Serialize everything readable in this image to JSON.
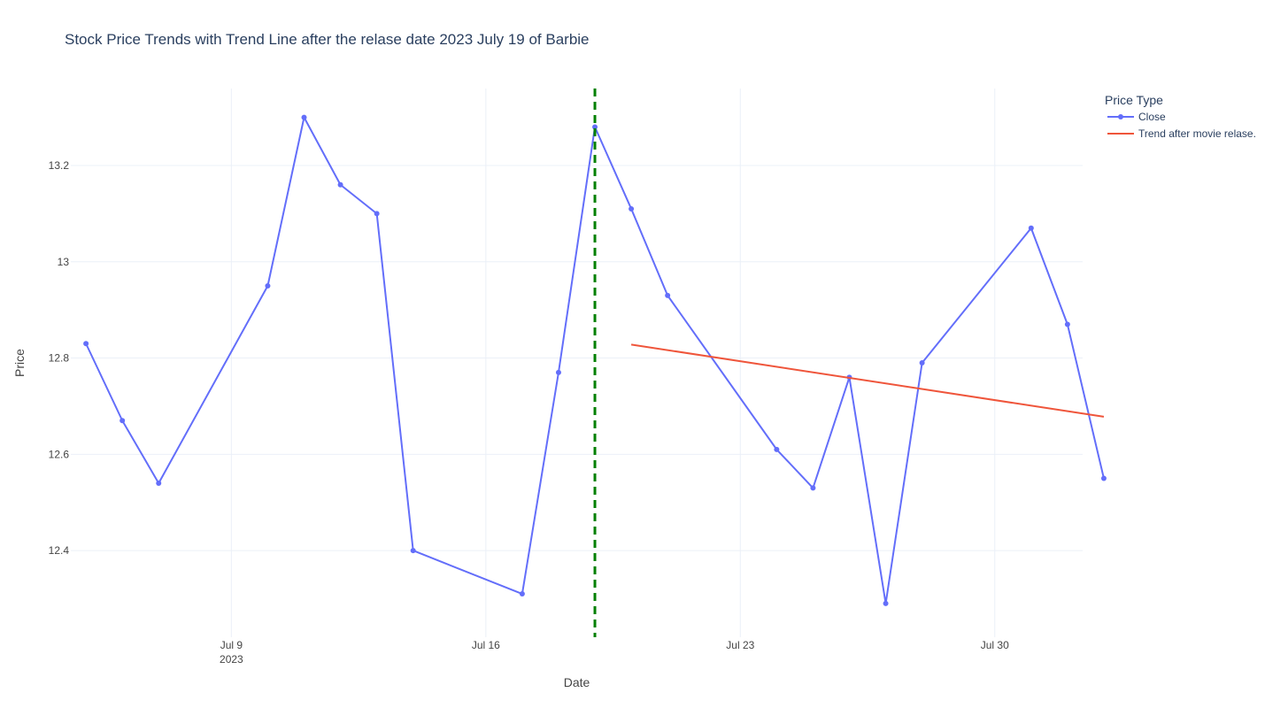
{
  "chart_data": {
    "type": "line",
    "title": "Stock Price Trends with Trend Line after the relase date 2023 July 19 of Barbie",
    "xlabel": "Date",
    "ylabel": "Price",
    "legend": {
      "title": "Price Type",
      "placement": "top-right-outside",
      "entries": [
        "Close",
        "Trend after movie relase."
      ]
    },
    "x_range": [
      "2023-07-04T14:00",
      "2023-08-01T10:00"
    ],
    "ylim": [
      12.22,
      13.36
    ],
    "grid": true,
    "x_ticks": [
      {
        "date": "2023-07-09",
        "label": "Jul 9",
        "sublabel": "2023"
      },
      {
        "date": "2023-07-16",
        "label": "Jul 16",
        "sublabel": ""
      },
      {
        "date": "2023-07-23",
        "label": "Jul 23",
        "sublabel": ""
      },
      {
        "date": "2023-07-30",
        "label": "Jul 30",
        "sublabel": ""
      }
    ],
    "y_ticks": [
      {
        "value": 12.4,
        "label": "12.4"
      },
      {
        "value": 12.6,
        "label": "12.6"
      },
      {
        "value": 12.8,
        "label": "12.8"
      },
      {
        "value": 13.0,
        "label": "13"
      },
      {
        "value": 13.2,
        "label": "13.2"
      }
    ],
    "series": [
      {
        "name": "Close",
        "mode": "lines+markers",
        "color": "#636efa",
        "points": [
          {
            "x": "2023-07-05",
            "y": 12.83
          },
          {
            "x": "2023-07-06",
            "y": 12.67
          },
          {
            "x": "2023-07-07",
            "y": 12.54
          },
          {
            "x": "2023-07-10",
            "y": 12.95
          },
          {
            "x": "2023-07-11",
            "y": 13.3
          },
          {
            "x": "2023-07-12",
            "y": 13.16
          },
          {
            "x": "2023-07-13",
            "y": 13.1
          },
          {
            "x": "2023-07-14",
            "y": 12.4
          },
          {
            "x": "2023-07-17",
            "y": 12.31
          },
          {
            "x": "2023-07-18",
            "y": 12.77
          },
          {
            "x": "2023-07-19",
            "y": 13.28
          },
          {
            "x": "2023-07-20",
            "y": 13.11
          },
          {
            "x": "2023-07-21",
            "y": 12.93
          },
          {
            "x": "2023-07-24",
            "y": 12.61
          },
          {
            "x": "2023-07-25",
            "y": 12.53
          },
          {
            "x": "2023-07-26",
            "y": 12.76
          },
          {
            "x": "2023-07-27",
            "y": 12.29
          },
          {
            "x": "2023-07-28",
            "y": 12.79
          },
          {
            "x": "2023-07-31",
            "y": 13.07
          },
          {
            "x": "2023-08-01",
            "y": 12.87
          },
          {
            "x": "2023-08-02",
            "y": 12.55
          }
        ]
      },
      {
        "name": "Trend after movie relase.",
        "mode": "lines",
        "color": "#ef553b",
        "points": [
          {
            "x": "2023-07-20",
            "y": 12.828
          },
          {
            "x": "2023-08-02",
            "y": 12.678
          }
        ]
      }
    ],
    "annotations": [
      {
        "type": "vertical-line",
        "x": "2023-07-19",
        "style": "dashed",
        "color": "#008000"
      }
    ]
  }
}
